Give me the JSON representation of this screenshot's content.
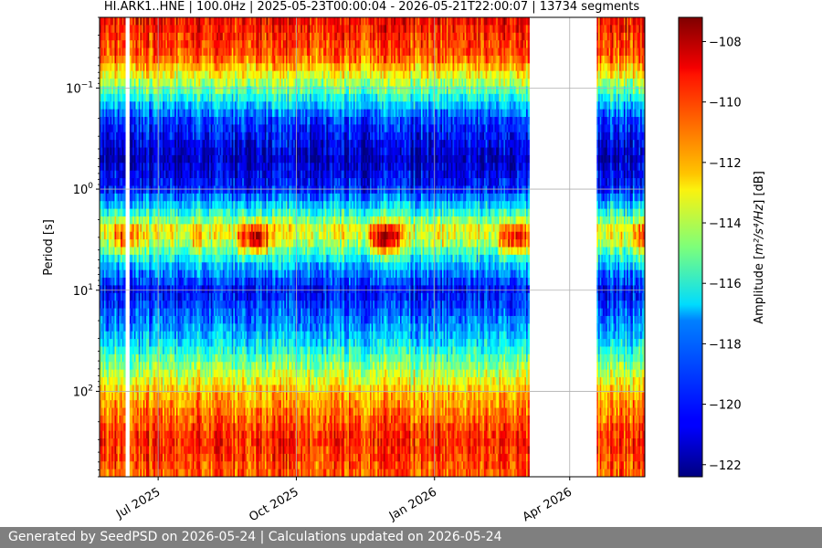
{
  "chart_data": {
    "type": "heatmap",
    "title": "HI.ARK1..HNE | 100.0Hz | 2025-05-23T00:00:04 - 2026-05-21T22:00:07 | 13734 segments",
    "xlabel": "",
    "ylabel": "Period [s]",
    "x_range": [
      "2025-05-23",
      "2026-05-21"
    ],
    "x_ticks": [
      "Jul 2025",
      "Oct 2025",
      "Jan 2026",
      "Apr 2026"
    ],
    "x_tick_dates": [
      "2025-07-01",
      "2025-10-01",
      "2026-01-01",
      "2026-04-01"
    ],
    "y_scale": "log",
    "y_inverted": true,
    "y_range_s": [
      0.02,
      700
    ],
    "y_ticks": [
      {
        "base": "10",
        "exp": "−1",
        "value": 0.1
      },
      {
        "base": "10",
        "exp": "0",
        "value": 1
      },
      {
        "base": "10",
        "exp": "1",
        "value": 10
      },
      {
        "base": "10",
        "exp": "2",
        "value": 100
      }
    ],
    "grid": true,
    "data_gaps": [
      {
        "start": "2025-06-09",
        "end": "2025-06-12"
      },
      {
        "start": "2026-03-05",
        "end": "2026-04-19"
      }
    ],
    "colorbar": {
      "label_prefix": "Amplitude [",
      "label_math": "m²/s⁴/Hz",
      "label_suffix": "] [dB]",
      "range": [
        -122.4,
        -107.2
      ],
      "ticks": [
        "−108",
        "−110",
        "−112",
        "−114",
        "−116",
        "−118",
        "−120",
        "−122"
      ],
      "tick_values": [
        -108,
        -110,
        -112,
        -114,
        -116,
        -118,
        -120,
        -122
      ],
      "colormap": "jet"
    },
    "amplitude_profile_db": [
      {
        "period_s": 0.02,
        "db": -109.0
      },
      {
        "period_s": 0.05,
        "db": -110.5
      },
      {
        "period_s": 0.1,
        "db": -115.0
      },
      {
        "period_s": 0.2,
        "db": -119.5
      },
      {
        "period_s": 0.5,
        "db": -121.5
      },
      {
        "period_s": 1.0,
        "db": -120.0
      },
      {
        "period_s": 2.5,
        "db": -113.5
      },
      {
        "period_s": 4.0,
        "db": -116.0
      },
      {
        "period_s": 10.0,
        "db": -120.5
      },
      {
        "period_s": 30.0,
        "db": -117.5
      },
      {
        "period_s": 100.0,
        "db": -112.0
      },
      {
        "period_s": 300.0,
        "db": -109.5
      },
      {
        "period_s": 700.0,
        "db": -110.5
      }
    ]
  },
  "footer": "Generated by SeedPSD on 2026-05-24 | Calculations updated on 2026-05-24"
}
